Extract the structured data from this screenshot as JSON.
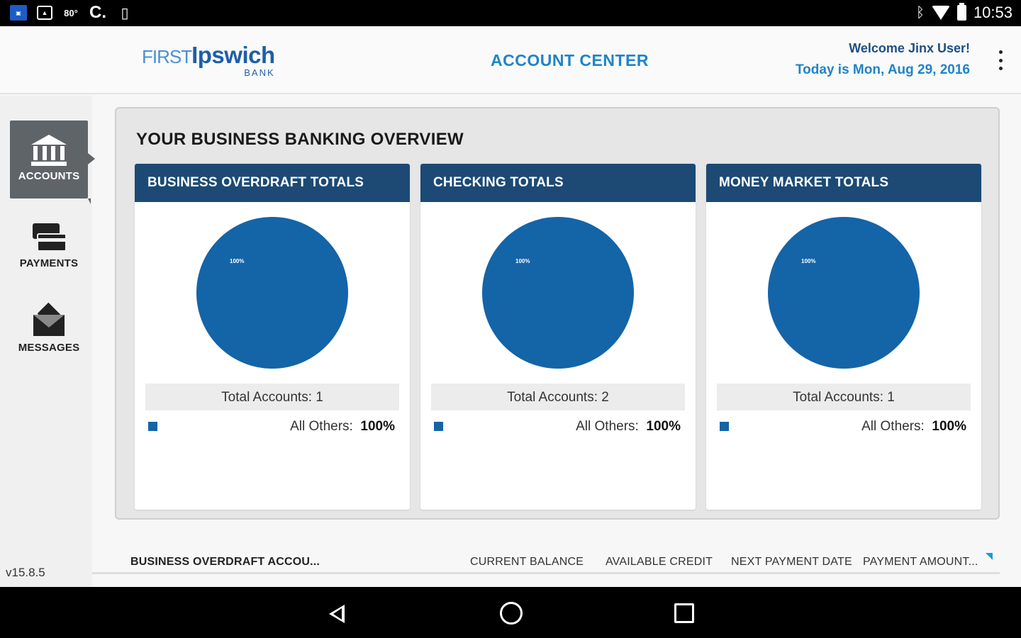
{
  "status_bar": {
    "left_icons": [
      "app-notification-icon",
      "image-icon",
      "weather-icon",
      "sync-icon",
      "sd-card-icon"
    ],
    "weather_temp": "80°",
    "sync_glyph": "C.",
    "time": "10:53"
  },
  "header": {
    "logo_first": "FIRST",
    "logo_ipswich": "Ipswich",
    "logo_bank": "BANK",
    "title": "ACCOUNT CENTER",
    "welcome": "Welcome Jinx User!",
    "date": "Today is Mon, Aug 29, 2016"
  },
  "sidebar": {
    "items": [
      {
        "label": "ACCOUNTS",
        "icon": "bank-icon",
        "active": true
      },
      {
        "label": "PAYMENTS",
        "icon": "payments-icon",
        "active": false
      },
      {
        "label": "MESSAGES",
        "icon": "messages-icon",
        "active": false
      }
    ],
    "version": "v15.8.5"
  },
  "overview": {
    "title": "YOUR BUSINESS BANKING OVERVIEW",
    "cards": [
      {
        "title": "BUSINESS OVERDRAFT TOTALS",
        "pie_label": "100%",
        "total_accounts": "Total Accounts: 1",
        "legend_label": "All Others:",
        "legend_value": "100%"
      },
      {
        "title": "CHECKING TOTALS",
        "pie_label": "100%",
        "total_accounts": "Total Accounts: 2",
        "legend_label": "All Others:",
        "legend_value": "100%"
      },
      {
        "title": "MONEY MARKET TOTALS",
        "pie_label": "100%",
        "total_accounts": "Total Accounts: 1",
        "legend_label": "All Others:",
        "legend_value": "100%"
      }
    ]
  },
  "chart_data": [
    {
      "type": "pie",
      "title": "BUSINESS OVERDRAFT TOTALS",
      "categories": [
        "All Others"
      ],
      "values": [
        100
      ],
      "colors": [
        "#1464a8"
      ]
    },
    {
      "type": "pie",
      "title": "CHECKING TOTALS",
      "categories": [
        "All Others"
      ],
      "values": [
        100
      ],
      "colors": [
        "#1464a8"
      ]
    },
    {
      "type": "pie",
      "title": "MONEY MARKET TOTALS",
      "categories": [
        "All Others"
      ],
      "values": [
        100
      ],
      "colors": [
        "#1464a8"
      ]
    }
  ],
  "table": {
    "columns": [
      "BUSINESS OVERDRAFT ACCOU...",
      "CURRENT BALANCE",
      "AVAILABLE CREDIT",
      "NEXT PAYMENT DATE",
      "PAYMENT AMOUNT..."
    ]
  },
  "colors": {
    "accent": "#1f84c9",
    "card_header": "#1c4a75",
    "pie": "#1464a8",
    "sidebar_active": "#5f6469"
  }
}
